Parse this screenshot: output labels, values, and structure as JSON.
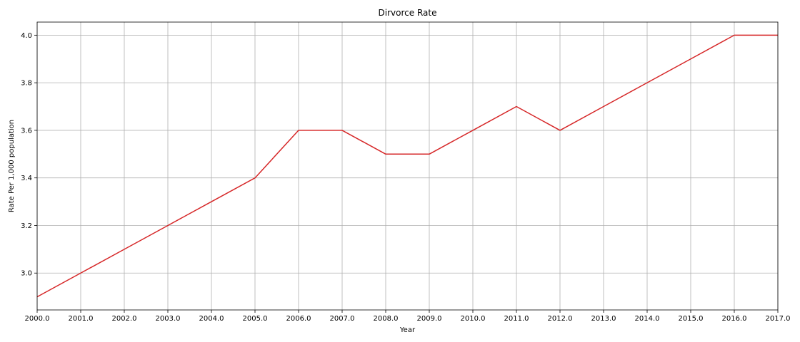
{
  "chart_data": {
    "type": "line",
    "title": "Dirvorce Rate",
    "xlabel": "Year",
    "ylabel": "Rate Per 1,000 population",
    "x": [
      2000,
      2001,
      2002,
      2003,
      2004,
      2005,
      2006,
      2007,
      2008,
      2009,
      2010,
      2011,
      2012,
      2013,
      2014,
      2015,
      2016,
      2017
    ],
    "series": [
      {
        "values": [
          2.9,
          3.0,
          3.1,
          3.2,
          3.3,
          3.4,
          3.6,
          3.6,
          3.5,
          3.5,
          3.6,
          3.7,
          3.6,
          3.7,
          3.8,
          3.9,
          4.0,
          4.0
        ],
        "color": "#d62728"
      }
    ],
    "xlim": [
      2000,
      2017
    ],
    "ylim": [
      2.845,
      4.055
    ],
    "xticks": [
      "2000.0",
      "2001.0",
      "2002.0",
      "2003.0",
      "2004.0",
      "2005.0",
      "2006.0",
      "2007.0",
      "2008.0",
      "2009.0",
      "2010.0",
      "2011.0",
      "2012.0",
      "2013.0",
      "2014.0",
      "2015.0",
      "2016.0",
      "2017.0"
    ],
    "yticks": [
      "3.0",
      "3.2",
      "3.4",
      "3.6",
      "3.8",
      "4.0"
    ],
    "grid": true,
    "legend": "none"
  }
}
